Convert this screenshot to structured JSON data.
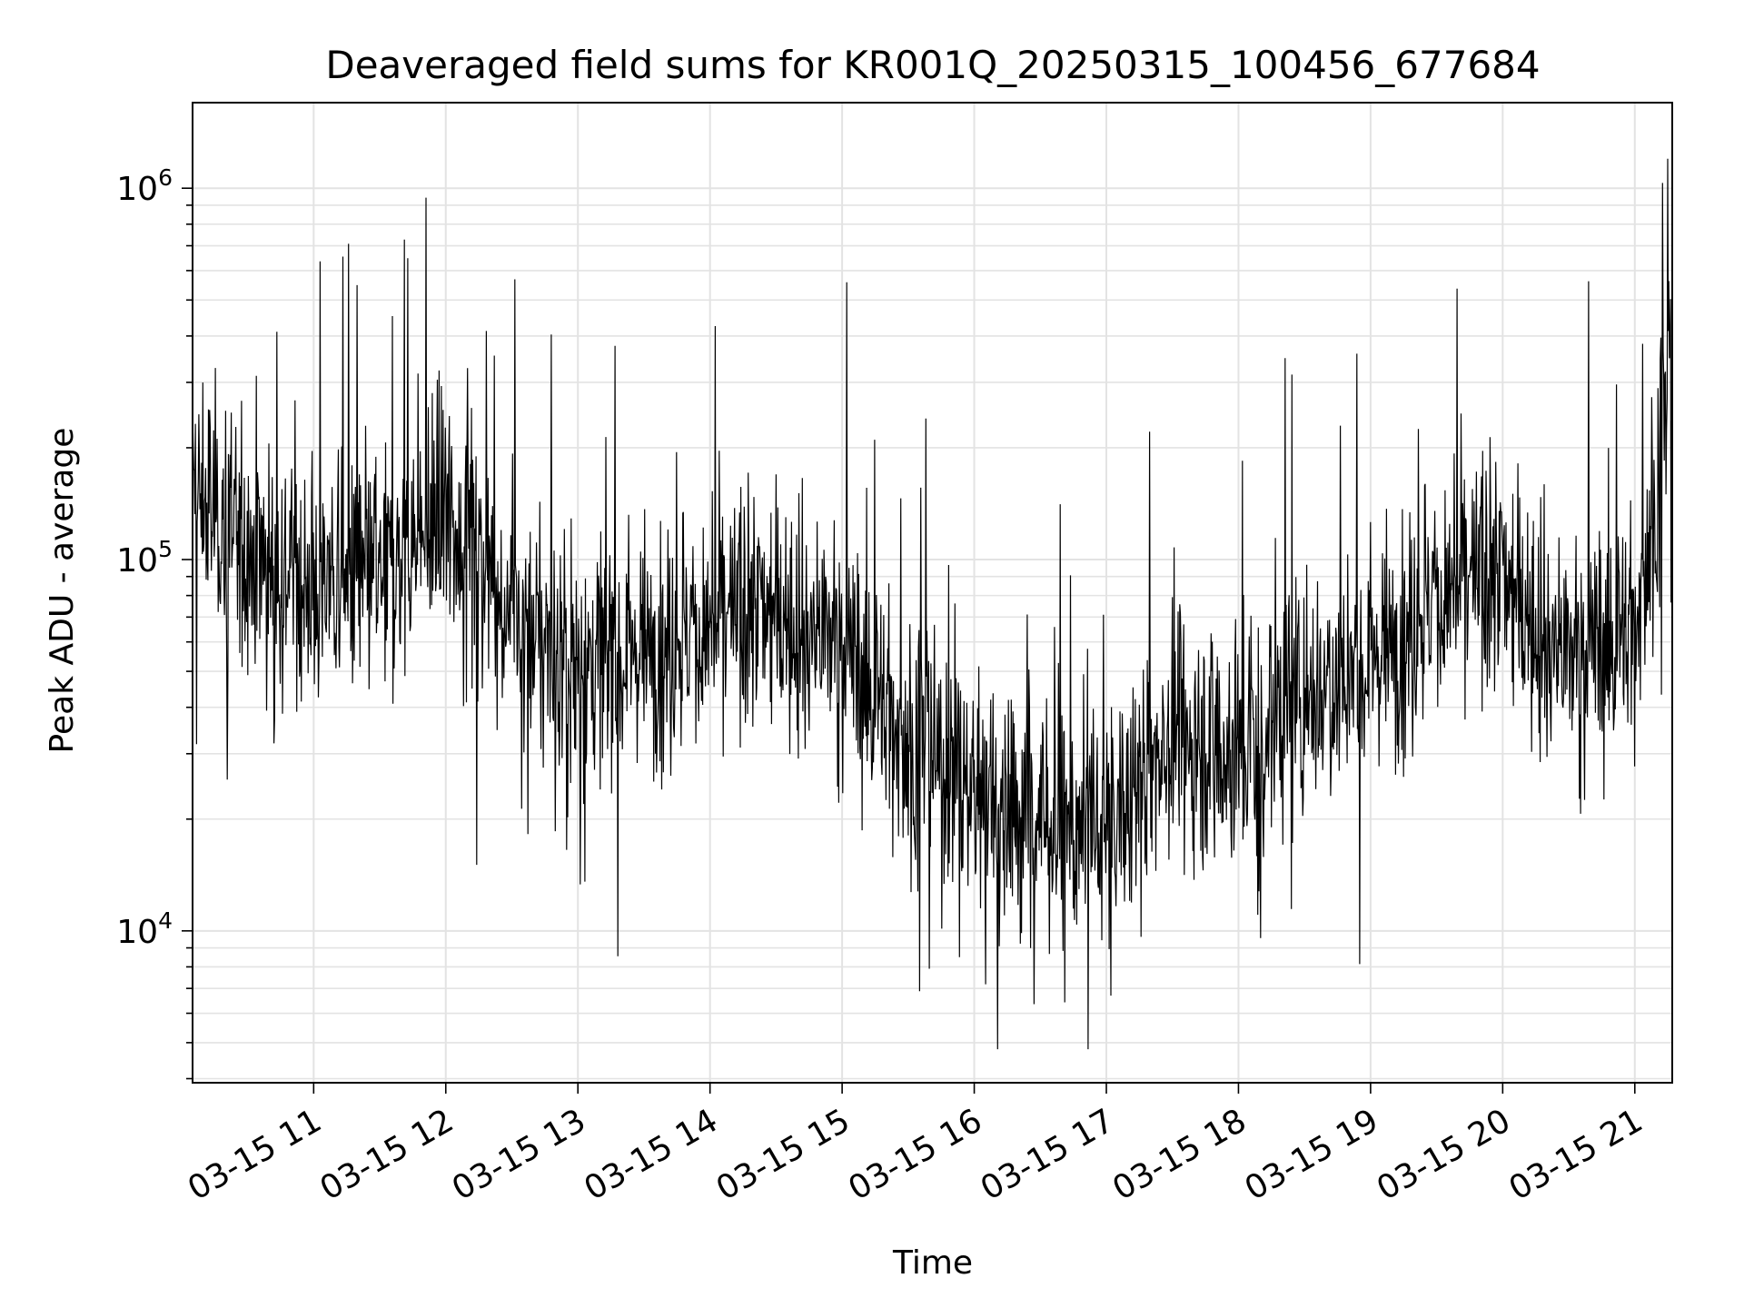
{
  "chart_data": {
    "type": "line",
    "title": "Deaveraged field sums for KR001Q_20250315_100456_677684",
    "xlabel": "Time",
    "ylabel": "Peak ADU - average",
    "y_scale": "log",
    "ylim": [
      3900,
      1700000
    ],
    "xlim": [
      "2025-03-15 10:05",
      "2025-03-15 21:17"
    ],
    "x_ticks": [
      "03-15 11",
      "03-15 12",
      "03-15 13",
      "03-15 14",
      "03-15 15",
      "03-15 16",
      "03-15 17",
      "03-15 18",
      "03-15 19",
      "03-15 20",
      "03-15 21"
    ],
    "y_ticks": [
      {
        "base": "10",
        "exp": "4",
        "value": 10000
      },
      {
        "base": "10",
        "exp": "5",
        "value": 100000
      },
      {
        "base": "10",
        "exp": "6",
        "value": 1000000
      }
    ],
    "grid": true,
    "line_color": "#000000",
    "series": [
      {
        "x": [
          "2025-03-15 10:05",
          "2025-03-15 10:30",
          "2025-03-15 11:00",
          "2025-03-15 11:30",
          "2025-03-15 12:00",
          "2025-03-15 12:30",
          "2025-03-15 13:00",
          "2025-03-15 13:30",
          "2025-03-15 14:00",
          "2025-03-15 14:30",
          "2025-03-15 15:00",
          "2025-03-15 15:30",
          "2025-03-15 16:00",
          "2025-03-15 16:30",
          "2025-03-15 17:00",
          "2025-03-15 17:30",
          "2025-03-15 18:00",
          "2025-03-15 18:30",
          "2025-03-15 19:00",
          "2025-03-15 19:30",
          "2025-03-15 20:00",
          "2025-03-15 20:30",
          "2025-03-15 21:00",
          "2025-03-15 21:17"
        ],
        "y": [
          150000,
          110000,
          85000,
          90000,
          130000,
          70000,
          50000,
          60000,
          65000,
          75000,
          60000,
          32000,
          25000,
          20000,
          18000,
          35000,
          30000,
          45000,
          55000,
          80000,
          90000,
          55000,
          65000,
          300000
        ]
      }
    ]
  }
}
